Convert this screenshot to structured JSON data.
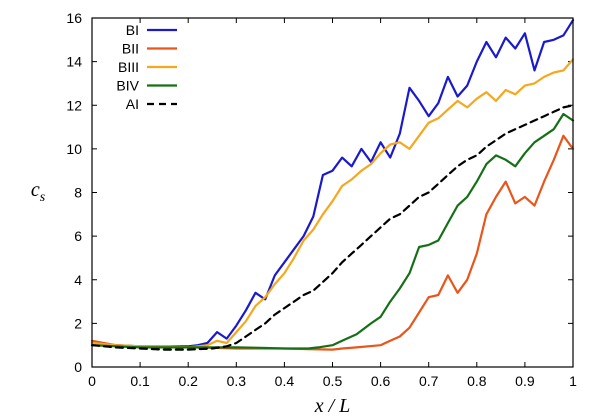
{
  "chart_data": {
    "type": "line",
    "title": "",
    "xlabel": "x / L",
    "ylabel_main": "c",
    "ylabel_sub": "s",
    "xlim": [
      0,
      1
    ],
    "ylim": [
      0,
      16
    ],
    "xticks": [
      0,
      0.1,
      0.2,
      0.3,
      0.4,
      0.5,
      0.6,
      0.7,
      0.8,
      0.9,
      1
    ],
    "xtick_labels": [
      "0",
      "0.1",
      "0.2",
      "0.3",
      "0.4",
      "0.5",
      "0.6",
      "0.7",
      "0.8",
      "0.9",
      "1"
    ],
    "yticks": [
      0,
      2,
      4,
      6,
      8,
      10,
      12,
      14,
      16
    ],
    "ytick_labels": [
      "0",
      "2",
      "4",
      "6",
      "8",
      "10",
      "12",
      "14",
      "16"
    ],
    "grid": false,
    "legend_position": "top-left",
    "series": [
      {
        "name": "BI",
        "color": "#1a1acc",
        "dash": "solid",
        "x": [
          0,
          0.05,
          0.1,
          0.15,
          0.2,
          0.22,
          0.24,
          0.26,
          0.28,
          0.3,
          0.32,
          0.34,
          0.36,
          0.38,
          0.4,
          0.42,
          0.44,
          0.46,
          0.48,
          0.5,
          0.52,
          0.54,
          0.56,
          0.58,
          0.6,
          0.62,
          0.64,
          0.66,
          0.68,
          0.7,
          0.72,
          0.74,
          0.76,
          0.78,
          0.8,
          0.82,
          0.84,
          0.86,
          0.88,
          0.9,
          0.92,
          0.94,
          0.96,
          0.98,
          1.0
        ],
        "y": [
          1.1,
          1.0,
          0.95,
          0.95,
          0.95,
          1.0,
          1.1,
          1.6,
          1.3,
          1.9,
          2.6,
          3.4,
          3.1,
          4.2,
          4.8,
          5.4,
          6.0,
          6.9,
          8.8,
          9.0,
          9.6,
          9.2,
          10.0,
          9.4,
          10.3,
          9.6,
          10.7,
          12.8,
          12.2,
          11.5,
          12.1,
          13.3,
          12.4,
          12.9,
          14.0,
          14.9,
          14.2,
          15.1,
          14.6,
          15.3,
          13.6,
          14.9,
          15.0,
          15.2,
          15.9
        ]
      },
      {
        "name": "BII",
        "color": "#e8561a",
        "dash": "solid",
        "x": [
          0,
          0.05,
          0.1,
          0.15,
          0.2,
          0.25,
          0.3,
          0.35,
          0.4,
          0.45,
          0.5,
          0.52,
          0.55,
          0.6,
          0.62,
          0.64,
          0.66,
          0.68,
          0.7,
          0.72,
          0.74,
          0.76,
          0.78,
          0.8,
          0.82,
          0.84,
          0.86,
          0.88,
          0.9,
          0.92,
          0.94,
          0.96,
          0.98,
          1.0
        ],
        "y": [
          1.2,
          1.0,
          0.95,
          0.9,
          0.9,
          0.88,
          0.85,
          0.85,
          0.85,
          0.82,
          0.8,
          0.85,
          0.9,
          1.0,
          1.2,
          1.4,
          1.8,
          2.5,
          3.2,
          3.3,
          4.2,
          3.4,
          4.0,
          5.2,
          7.0,
          7.8,
          8.5,
          7.5,
          7.8,
          7.4,
          8.5,
          9.5,
          10.6,
          10.0
        ]
      },
      {
        "name": "BIII",
        "color": "#f5a81e",
        "dash": "solid",
        "x": [
          0,
          0.05,
          0.1,
          0.15,
          0.2,
          0.22,
          0.24,
          0.26,
          0.28,
          0.3,
          0.32,
          0.34,
          0.36,
          0.38,
          0.4,
          0.42,
          0.44,
          0.46,
          0.48,
          0.5,
          0.52,
          0.54,
          0.56,
          0.58,
          0.6,
          0.62,
          0.64,
          0.66,
          0.68,
          0.7,
          0.72,
          0.74,
          0.76,
          0.78,
          0.8,
          0.82,
          0.84,
          0.86,
          0.88,
          0.9,
          0.92,
          0.94,
          0.96,
          0.98,
          1.0
        ],
        "y": [
          1.1,
          1.0,
          0.95,
          0.95,
          0.9,
          0.95,
          1.0,
          1.2,
          1.1,
          1.6,
          2.1,
          2.8,
          3.2,
          3.8,
          4.3,
          5.0,
          5.8,
          6.3,
          7.0,
          7.6,
          8.3,
          8.6,
          9.0,
          9.3,
          9.8,
          10.2,
          10.3,
          10.0,
          10.6,
          11.2,
          11.4,
          11.8,
          12.2,
          11.9,
          12.3,
          12.6,
          12.2,
          12.7,
          12.5,
          12.9,
          13.0,
          13.3,
          13.5,
          13.6,
          14.1
        ]
      },
      {
        "name": "BIV",
        "color": "#157015",
        "dash": "solid",
        "x": [
          0,
          0.05,
          0.1,
          0.15,
          0.2,
          0.25,
          0.3,
          0.35,
          0.4,
          0.45,
          0.47,
          0.5,
          0.52,
          0.55,
          0.58,
          0.6,
          0.62,
          0.64,
          0.66,
          0.68,
          0.7,
          0.72,
          0.74,
          0.76,
          0.78,
          0.8,
          0.82,
          0.84,
          0.86,
          0.88,
          0.9,
          0.92,
          0.94,
          0.96,
          0.98,
          1.0
        ],
        "y": [
          1.0,
          0.95,
          0.9,
          0.9,
          0.9,
          0.9,
          0.9,
          0.88,
          0.85,
          0.85,
          0.9,
          1.0,
          1.2,
          1.5,
          2.0,
          2.3,
          3.0,
          3.6,
          4.3,
          5.5,
          5.6,
          5.8,
          6.6,
          7.4,
          7.8,
          8.5,
          9.3,
          9.7,
          9.5,
          9.2,
          9.8,
          10.3,
          10.6,
          10.9,
          11.6,
          11.3
        ]
      },
      {
        "name": "AI",
        "color": "#000000",
        "dash": "dashed",
        "x": [
          0,
          0.05,
          0.1,
          0.15,
          0.2,
          0.25,
          0.28,
          0.3,
          0.32,
          0.34,
          0.36,
          0.38,
          0.4,
          0.42,
          0.44,
          0.46,
          0.48,
          0.5,
          0.52,
          0.54,
          0.56,
          0.58,
          0.6,
          0.62,
          0.64,
          0.66,
          0.68,
          0.7,
          0.72,
          0.74,
          0.76,
          0.78,
          0.8,
          0.82,
          0.84,
          0.86,
          0.88,
          0.9,
          0.92,
          0.94,
          0.96,
          0.98,
          1.0
        ],
        "y": [
          1.0,
          0.9,
          0.85,
          0.8,
          0.8,
          0.85,
          0.95,
          1.1,
          1.4,
          1.7,
          2.0,
          2.4,
          2.7,
          3.0,
          3.3,
          3.5,
          3.9,
          4.3,
          4.8,
          5.2,
          5.6,
          6.0,
          6.4,
          6.8,
          7.0,
          7.4,
          7.8,
          8.0,
          8.4,
          8.8,
          9.2,
          9.5,
          9.7,
          10.1,
          10.4,
          10.7,
          10.9,
          11.1,
          11.3,
          11.5,
          11.7,
          11.9,
          12.0
        ]
      }
    ]
  }
}
